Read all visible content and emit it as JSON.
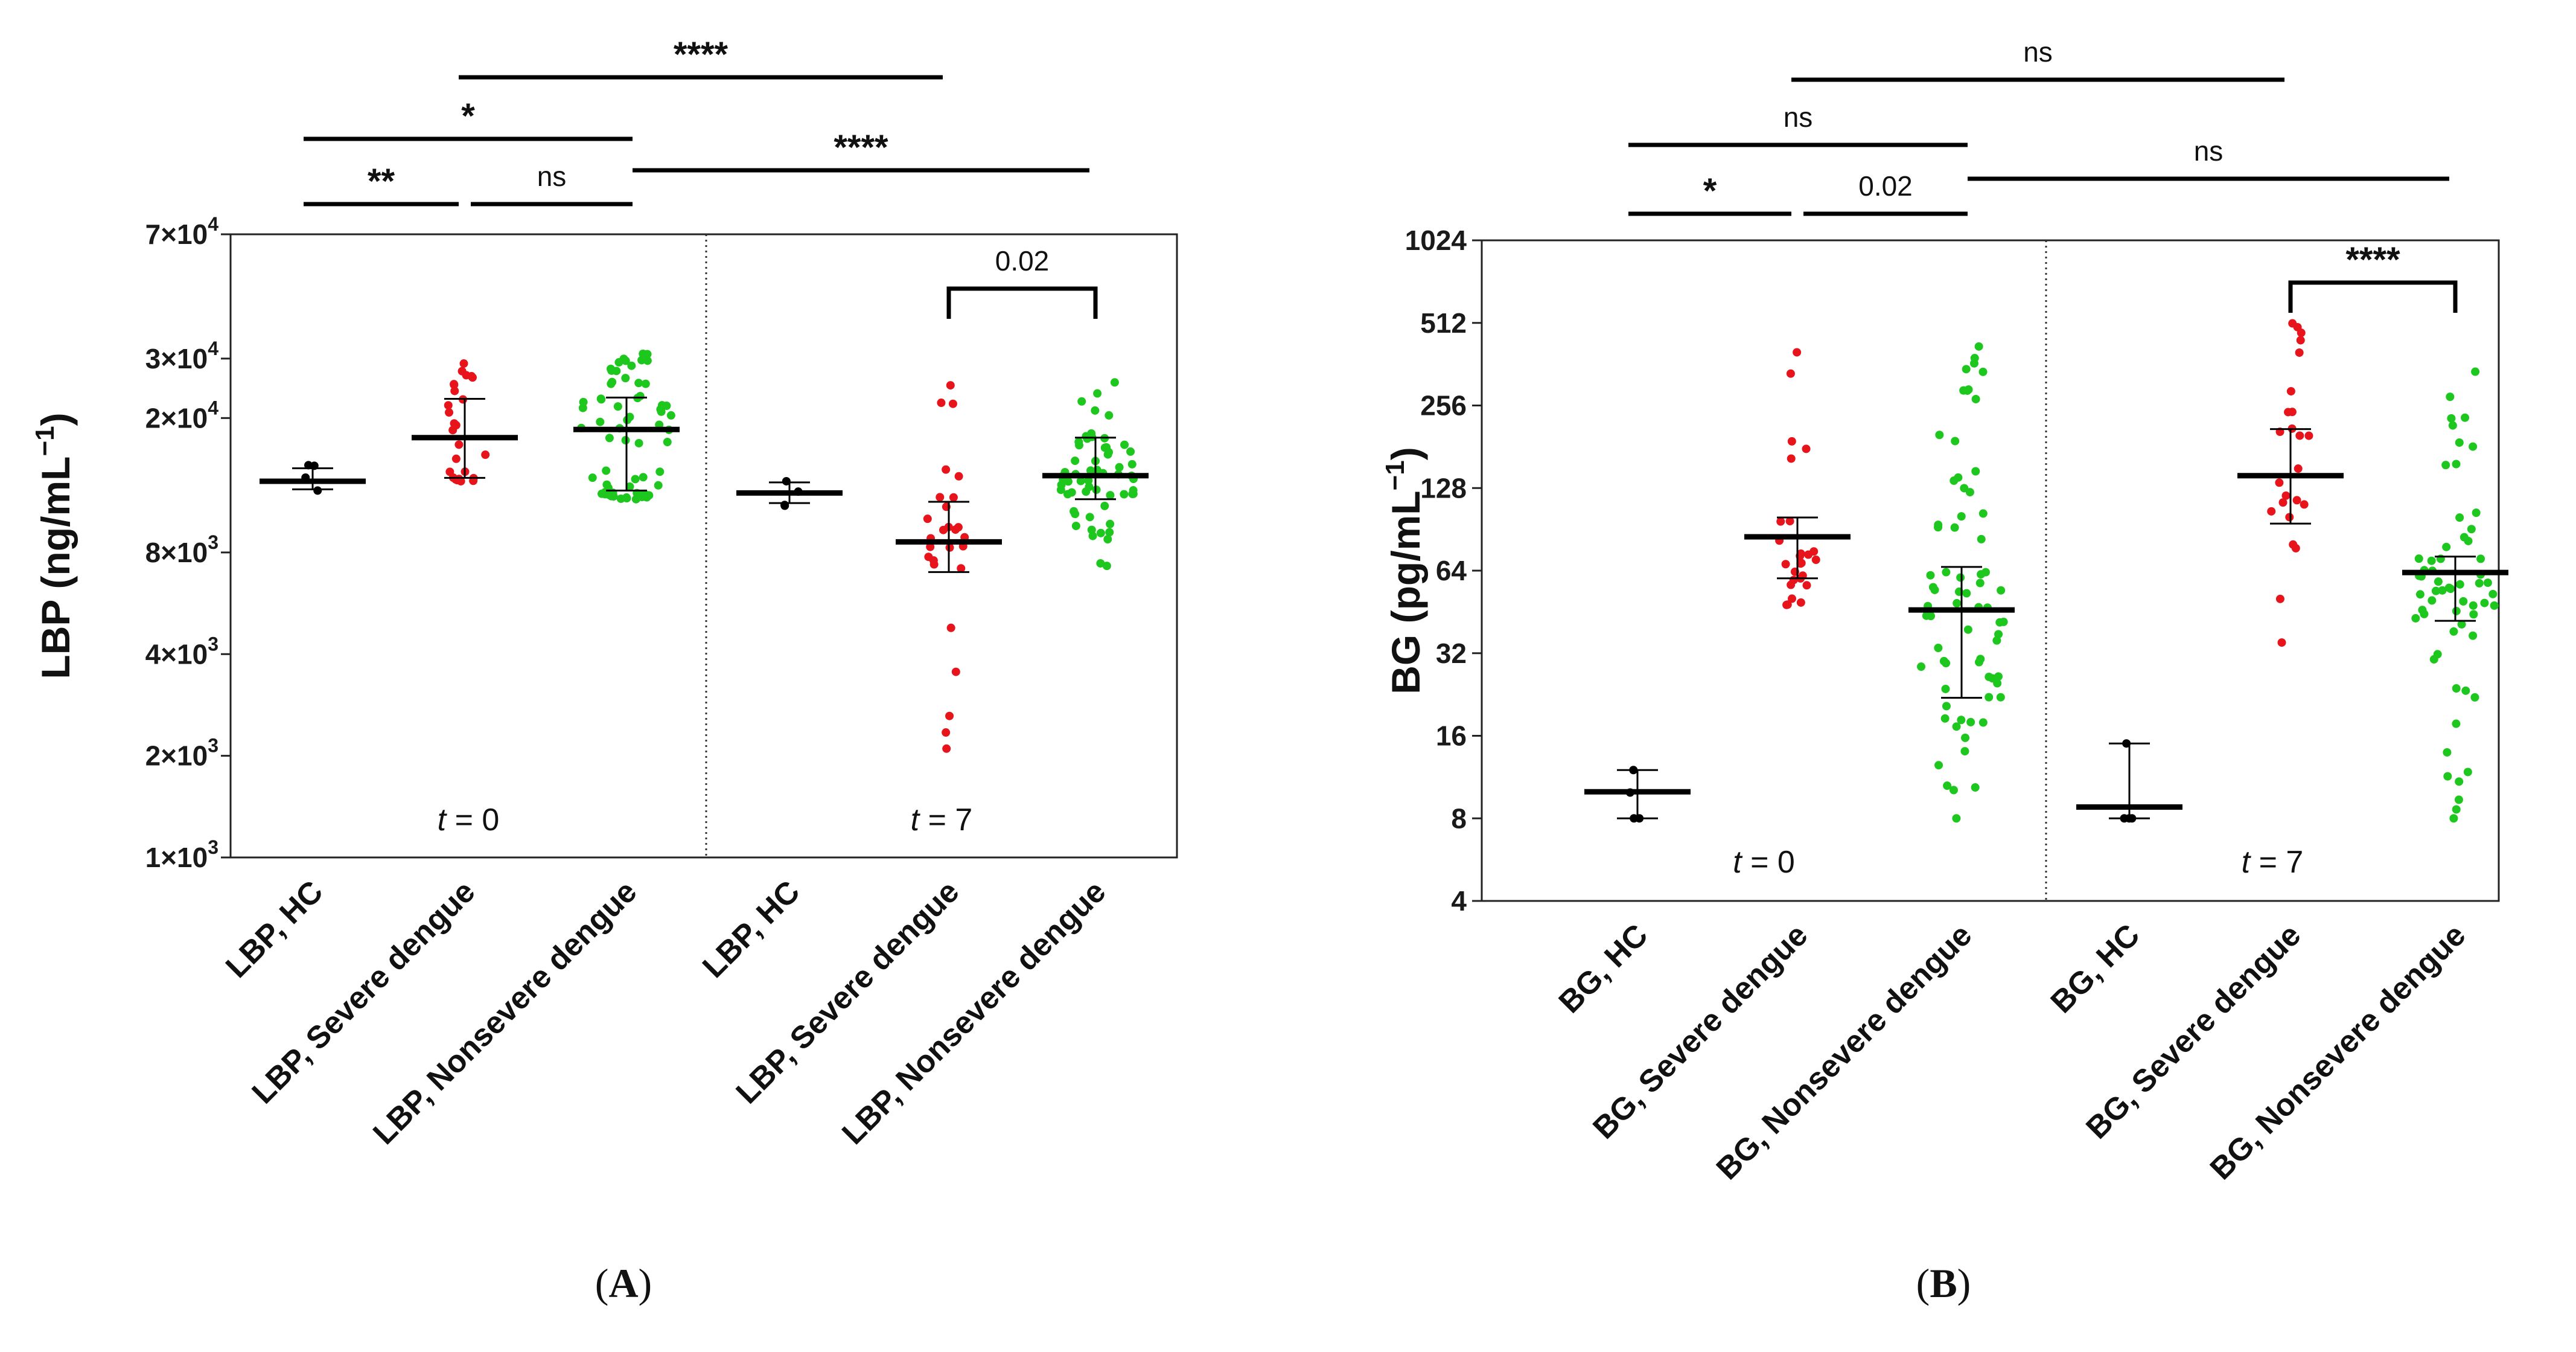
{
  "chart_data": [
    {
      "type": "scatter",
      "panel_label": "A",
      "ylabel": "LBP (ng/mL",
      "ylabel_sup": "−1",
      "ylabel_close": ")",
      "y_scale": "log",
      "ylim": [
        1000,
        70000
      ],
      "yticks": [
        {
          "value": 1000,
          "mant": "1×10",
          "exp": "3"
        },
        {
          "value": 2000,
          "mant": "2×10",
          "exp": "3"
        },
        {
          "value": 4000,
          "mant": "4×10",
          "exp": "3"
        },
        {
          "value": 8000,
          "mant": "8×10",
          "exp": "3"
        },
        {
          "value": 20000,
          "mant": "2×10",
          "exp": "4"
        },
        {
          "value": 30000,
          "mant": "3×10",
          "exp": "4"
        },
        {
          "value": 70000,
          "mant": "7×10",
          "exp": "4"
        }
      ],
      "categories": [
        "LBP, HC",
        "LBP, Severe dengue",
        "LBP, Nonsevere dengue",
        "LBP, HC",
        "LBP, Severe dengue",
        "LBP, Nonsevere dengue"
      ],
      "time_labels": [
        {
          "var": "t",
          "text": " = 0"
        },
        {
          "var": "t",
          "text": " = 7"
        }
      ],
      "groups": [
        {
          "color": "#000000",
          "median": 13000,
          "q1": 12300,
          "q3": 14200,
          "n": 4,
          "min": 12200,
          "max": 14500
        },
        {
          "color": "#e8141b",
          "median": 17500,
          "q1": 13300,
          "q3": 22800,
          "n": 26,
          "min": 13000,
          "max": 29000
        },
        {
          "color": "#1ec71e",
          "median": 18500,
          "q1": 12200,
          "q3": 23000,
          "n": 70,
          "min": 11500,
          "max": 31000
        },
        {
          "color": "#000000",
          "median": 12000,
          "q1": 11200,
          "q3": 12900,
          "n": 4,
          "min": 11000,
          "max": 13000
        },
        {
          "color": "#e8141b",
          "median": 8600,
          "q1": 7000,
          "q3": 11300,
          "n": 27,
          "min": 2100,
          "max": 25000
        },
        {
          "color": "#1ec71e",
          "median": 13500,
          "q1": 11500,
          "q3": 17500,
          "n": 60,
          "min": 7300,
          "max": 25500
        }
      ],
      "significance": [
        {
          "groups": [
            0,
            1
          ],
          "label": "**"
        },
        {
          "groups": [
            1,
            2
          ],
          "label": "ns"
        },
        {
          "groups": [
            0,
            2
          ],
          "label": "*"
        },
        {
          "groups": [
            2,
            5
          ],
          "label": "****"
        },
        {
          "groups": [
            1,
            4
          ],
          "label": "****"
        },
        {
          "groups": [
            4,
            5
          ],
          "label": "0.02"
        }
      ]
    },
    {
      "type": "scatter",
      "panel_label": "B",
      "ylabel": "BG (pg/mL",
      "ylabel_sup": "−1",
      "ylabel_close": ")",
      "y_scale": "log2",
      "ylim": [
        4,
        1024
      ],
      "yticks": [
        {
          "value": 4,
          "mant": "4",
          "exp": ""
        },
        {
          "value": 8,
          "mant": "8",
          "exp": ""
        },
        {
          "value": 16,
          "mant": "16",
          "exp": ""
        },
        {
          "value": 32,
          "mant": "32",
          "exp": ""
        },
        {
          "value": 64,
          "mant": "64",
          "exp": ""
        },
        {
          "value": 128,
          "mant": "128",
          "exp": ""
        },
        {
          "value": 256,
          "mant": "256",
          "exp": ""
        },
        {
          "value": 512,
          "mant": "512",
          "exp": ""
        },
        {
          "value": 1024,
          "mant": "1024",
          "exp": ""
        }
      ],
      "categories": [
        "BG, HC",
        "BG, Severe dengue",
        "BG, Nonsevere dengue",
        "BG, HC",
        "BG, Severe dengue",
        "BG, Nonsevere dengue"
      ],
      "time_labels": [
        {
          "var": "t",
          "text": " = 0"
        },
        {
          "var": "t",
          "text": " = 7"
        }
      ],
      "groups": [
        {
          "color": "#000000",
          "median": 10,
          "q1": 8,
          "q3": 12,
          "n": 4,
          "min": 8,
          "max": 12
        },
        {
          "color": "#e8141b",
          "median": 85,
          "q1": 60,
          "q3": 100,
          "n": 26,
          "min": 48,
          "max": 400
        },
        {
          "color": "#1ec71e",
          "median": 46,
          "q1": 22,
          "q3": 66,
          "n": 70,
          "min": 8,
          "max": 420
        },
        {
          "color": "#000000",
          "median": 8.8,
          "q1": 8,
          "q3": 15,
          "n": 4,
          "min": 8,
          "max": 15
        },
        {
          "color": "#e8141b",
          "median": 142,
          "q1": 95,
          "q3": 210,
          "n": 24,
          "min": 35,
          "max": 510
        },
        {
          "color": "#1ec71e",
          "median": 63,
          "q1": 42,
          "q3": 72,
          "n": 60,
          "min": 8,
          "max": 340
        }
      ],
      "significance": [
        {
          "groups": [
            0,
            1
          ],
          "label": "*"
        },
        {
          "groups": [
            1,
            2
          ],
          "label": "0.02"
        },
        {
          "groups": [
            0,
            2
          ],
          "label": "ns"
        },
        {
          "groups": [
            2,
            5
          ],
          "label": "ns"
        },
        {
          "groups": [
            1,
            4
          ],
          "label": "ns"
        },
        {
          "groups": [
            4,
            5
          ],
          "label": "****"
        }
      ]
    }
  ]
}
